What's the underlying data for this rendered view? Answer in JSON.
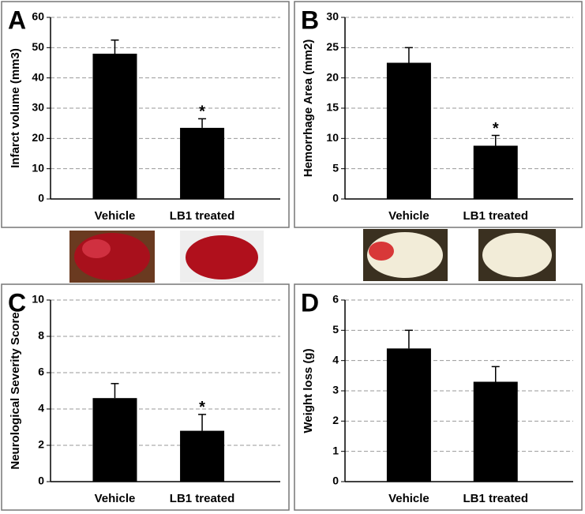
{
  "chart_data": [
    {
      "type": "bar",
      "panel": "A",
      "ylabel": "Infarct volume (mm3)",
      "categories": [
        "Vehicle",
        "LB1 treated"
      ],
      "values": [
        48,
        23.5
      ],
      "errors": [
        4.5,
        3
      ],
      "significance": [
        null,
        "*"
      ],
      "color": "#000000",
      "ylim": [
        0,
        60
      ],
      "yticks": [
        0,
        10,
        20,
        30,
        40,
        50,
        60
      ],
      "grid": true
    },
    {
      "type": "bar",
      "panel": "B",
      "ylabel": "Hemorrhage Area (mm2)",
      "categories": [
        "Vehicle",
        "LB1 treated"
      ],
      "values": [
        22.5,
        8.8
      ],
      "errors": [
        2.5,
        1.7
      ],
      "significance": [
        null,
        "*"
      ],
      "color": "#000000",
      "ylim": [
        0,
        30
      ],
      "yticks": [
        0,
        5,
        10,
        15,
        20,
        25,
        30
      ],
      "grid": true
    },
    {
      "type": "bar",
      "panel": "C",
      "ylabel": "Neurological Severity Score",
      "categories": [
        "Vehicle",
        "LB1 treated"
      ],
      "values": [
        4.6,
        2.8
      ],
      "errors": [
        0.8,
        0.9
      ],
      "significance": [
        null,
        "*"
      ],
      "color": "#000000",
      "ylim": [
        0,
        10
      ],
      "yticks": [
        0,
        2,
        4,
        6,
        8,
        10
      ],
      "grid": true
    },
    {
      "type": "bar",
      "panel": "D",
      "ylabel": "Weight loss  (g)",
      "categories": [
        "Vehicle",
        "LB1 treated"
      ],
      "values": [
        4.4,
        3.3
      ],
      "errors": [
        0.6,
        0.5
      ],
      "color": "#000000",
      "ylim": [
        0,
        6
      ],
      "yticks": [
        0,
        1,
        2,
        3,
        4,
        5,
        6
      ],
      "grid": true
    }
  ]
}
